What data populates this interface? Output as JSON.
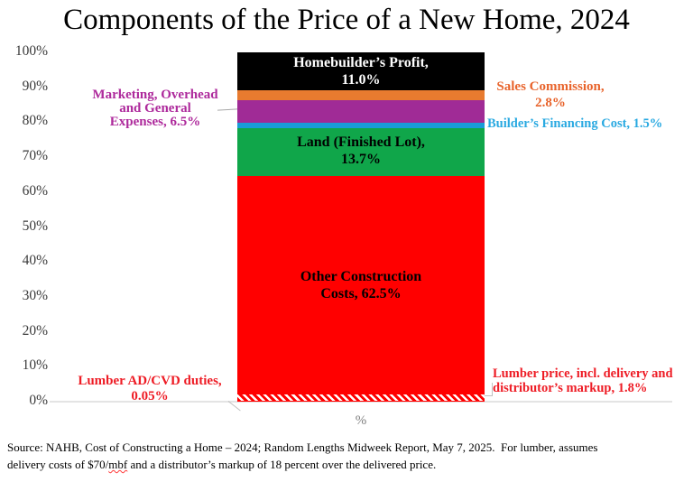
{
  "title": "Components of the Price of a New Home, 2024",
  "chart_data": {
    "type": "bar",
    "subtype": "single-stacked-column",
    "title": "Components of the Price of a New Home, 2024",
    "xlabel": "%",
    "ylabel": "",
    "ylim": [
      0,
      100
    ],
    "grid": false,
    "y_ticks": [
      "0%",
      "10%",
      "20%",
      "30%",
      "40%",
      "50%",
      "60%",
      "70%",
      "80%",
      "90%",
      "100%"
    ],
    "y_tick_values": [
      0,
      10,
      20,
      30,
      40,
      50,
      60,
      70,
      80,
      90,
      100
    ],
    "segments_bottom_to_top": [
      {
        "name": "Lumber AD/CVD duties",
        "value_pct": 0.05,
        "color": "#ff0000",
        "fill": "solid"
      },
      {
        "name": "Lumber price, incl. delivery and distributor’s markup",
        "value_pct": 1.8,
        "color": "#ff0000",
        "fill": "diagonal-hatch-red-on-white"
      },
      {
        "name": "Other Construction Costs",
        "value_pct": 62.5,
        "color": "#ff0000",
        "fill": "solid"
      },
      {
        "name": "Land (Finished Lot)",
        "value_pct": 13.7,
        "color": "#10a64a",
        "fill": "solid"
      },
      {
        "name": "Builder’s Financing Cost",
        "value_pct": 1.5,
        "color": "#199cd8",
        "fill": "solid"
      },
      {
        "name": "Marketing, Overhead and General Expenses",
        "value_pct": 6.5,
        "color": "#a02b96",
        "fill": "solid"
      },
      {
        "name": "Sales Commission",
        "value_pct": 2.8,
        "color": "#e87b2f",
        "fill": "solid"
      },
      {
        "name": "Homebuilder’s Profit",
        "value_pct": 11.0,
        "color": "#000000",
        "fill": "solid"
      }
    ]
  },
  "labels": {
    "profit": {
      "line1": "Homebuilder’s Profit,",
      "line2": "11.0%",
      "color": "#ffffff"
    },
    "sales": {
      "line1": "Sales Commission,",
      "line2": "2.8%",
      "color": "#e8632b"
    },
    "marketing": {
      "line1": "Marketing, Overhead",
      "line2": "and General",
      "line3": "Expenses, 6.5%",
      "color": "#ae2a9c"
    },
    "financing": {
      "line1": "Builder’s Financing Cost, 1.5%",
      "color": "#29a9e1"
    },
    "land": {
      "line1": "Land (Finished Lot),",
      "line2": "13.7%",
      "color": "#000000"
    },
    "other": {
      "line1": "Other Construction",
      "line2": "Costs, 62.5%",
      "color": "#000000"
    },
    "adcvd": {
      "line1": "Lumber AD/CVD duties,",
      "line2": "0.05%",
      "color": "#ee1c25"
    },
    "lumber": {
      "line1": "Lumber price, incl. delivery and",
      "line2": "distributor’s markup, 1.8%",
      "color": "#ee1c25"
    }
  },
  "axis": {
    "x_label": "%"
  },
  "source": {
    "line1": "Source: NAHB, Cost of Constructing a Home – 2024; Random Lengths Midweek Report, May 7, 2025.  For lumber, assumes",
    "line2_before": "delivery costs of $70/",
    "line2_misspelled_word": "mbf",
    "line2_after": " and a distributor’s markup of 18 percent over the delivered price."
  }
}
